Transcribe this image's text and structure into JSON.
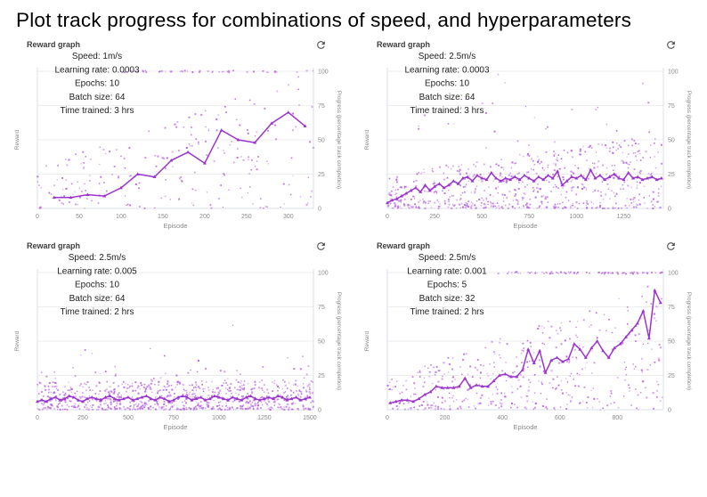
{
  "page": {
    "title": "Plot track progress for combinations of speed, and hyperparameters"
  },
  "colors": {
    "scatter": "#b766e2",
    "line": "#9c34ce",
    "grid": "#ededed",
    "spine": "#d9e1eb",
    "tick_text": "#8a8a8a",
    "axis_label_text": "#8a8a8a",
    "annotation_text": "#222222",
    "panel_title_text": "#3d3d3d",
    "refresh_icon": "#4f4f4f"
  },
  "chart_data": [
    {
      "type": "scatter",
      "title": "Reward graph",
      "refresh_icon": "refresh-icon",
      "annotation": [
        "Speed: 1m/s",
        "Learning rate: 0.0003",
        "Epochs: 10",
        "Batch size: 64",
        "Time trained: 3 hrs"
      ],
      "xlabel": "Episode",
      "ylabel_left": "Reward",
      "ylabel_right": "Progress (percentage track completion)",
      "x_ticks": [
        0,
        50,
        100,
        150,
        200,
        250,
        300
      ],
      "y_ticks_right": [
        0,
        25,
        50,
        75,
        100
      ],
      "x_max": 330,
      "ylim": [
        0,
        100
      ],
      "grid": true,
      "line": {
        "name": "average-progress",
        "points": [
          [
            20,
            8
          ],
          [
            40,
            8
          ],
          [
            60,
            10
          ],
          [
            80,
            9
          ],
          [
            100,
            15
          ],
          [
            120,
            25
          ],
          [
            140,
            23
          ],
          [
            160,
            35
          ],
          [
            180,
            41
          ],
          [
            200,
            33
          ],
          [
            220,
            57
          ],
          [
            240,
            50
          ],
          [
            260,
            48
          ],
          [
            280,
            62
          ],
          [
            300,
            70
          ],
          [
            320,
            60
          ]
        ]
      },
      "scatter": {
        "name": "episode-progress",
        "seed": 7,
        "count": 220,
        "y_max_start": 30,
        "y_max_end": 100,
        "bias": 1.3,
        "top_row": {
          "start_frac": 0.3,
          "count": 45
        },
        "extra": []
      }
    },
    {
      "type": "scatter",
      "title": "Reward graph",
      "refresh_icon": "refresh-icon",
      "annotation": [
        "Speed: 2.5m/s",
        "Learning rate: 0.0003",
        "Epochs: 10",
        "Batch size: 64",
        "Time trained: 3 hrs"
      ],
      "xlabel": "Episode",
      "ylabel_left": "Reward",
      "ylabel_right": "Progress (percentage track completion)",
      "x_ticks": [
        0,
        250,
        500,
        750,
        1000,
        1250
      ],
      "y_ticks_right": [
        0,
        25,
        50,
        75,
        100
      ],
      "x_max": 1460,
      "ylim": [
        0,
        100
      ],
      "grid": true,
      "line": {
        "name": "average-progress",
        "x_start": 0,
        "x_step": 25,
        "y_values": [
          4,
          6,
          7,
          9,
          11,
          13,
          15,
          12,
          17,
          13,
          16,
          18,
          15,
          17,
          20,
          18,
          22,
          23,
          20,
          24,
          22,
          21,
          26,
          22,
          20,
          22,
          21,
          23,
          21,
          24,
          22,
          20,
          23,
          21,
          24,
          22,
          27,
          17,
          20,
          23,
          22,
          24,
          21,
          28,
          22,
          24,
          21,
          23,
          25,
          22,
          21,
          26,
          22,
          23,
          21,
          22,
          23,
          21,
          22
        ]
      },
      "scatter": {
        "name": "episode-progress",
        "seed": 13,
        "count": 650,
        "y_max_start": 25,
        "y_max_end": 55,
        "bias": 1.5,
        "top_row": null,
        "extra": [
          {
            "count": 30,
            "ymin": 40,
            "ymax": 80,
            "start_frac": 0.05
          },
          {
            "count": 3,
            "ymin": 90,
            "ymax": 100,
            "start_frac": 0.3
          }
        ]
      }
    },
    {
      "type": "scatter",
      "title": "Reward graph",
      "refresh_icon": "refresh-icon",
      "annotation": [
        "Speed: 2.5m/s",
        "Learning rate: 0.005",
        "Epochs: 10",
        "Batch size: 64",
        "Time trained: 2 hrs"
      ],
      "xlabel": "Episode",
      "ylabel_left": "Reward",
      "ylabel_right": "Progress (percentage track completion)",
      "x_ticks": [
        0,
        250,
        500,
        750,
        1000,
        1250,
        1500
      ],
      "y_ticks_right": [
        0,
        25,
        50,
        75,
        100
      ],
      "x_max": 1520,
      "ylim": [
        0,
        100
      ],
      "grid": true,
      "line": {
        "name": "average-progress",
        "x_start": 0,
        "x_step": 25,
        "y_values": [
          6,
          7,
          6,
          8,
          9,
          7,
          8,
          10,
          9,
          7,
          6,
          8,
          9,
          8,
          7,
          9,
          10,
          8,
          7,
          8,
          9,
          7,
          8,
          9,
          10,
          8,
          7,
          9,
          8,
          6,
          7,
          9,
          10,
          9,
          7,
          8,
          9,
          7,
          8,
          10,
          9,
          8,
          7,
          9,
          8,
          7,
          9,
          10,
          8,
          7,
          8,
          9,
          8,
          10,
          9,
          7,
          8,
          9,
          7,
          8,
          9
        ]
      },
      "scatter": {
        "name": "episode-progress",
        "seed": 21,
        "count": 800,
        "y_max_start": 20,
        "y_max_end": 22,
        "bias": 1.6,
        "top_row": null,
        "extra": [
          {
            "count": 45,
            "ymin": 18,
            "ymax": 32,
            "start_frac": 0
          },
          {
            "count": 10,
            "ymin": 30,
            "ymax": 45,
            "start_frac": 0.05
          },
          {
            "count": 1,
            "ymin": 60,
            "ymax": 62,
            "start_frac": 0.3
          }
        ]
      }
    },
    {
      "type": "scatter",
      "title": "Reward graph",
      "refresh_icon": "refresh-icon",
      "annotation": [
        "Speed: 2.5m/s",
        "Learning rate: 0.001",
        "Epochs: 5",
        "Batch size: 32",
        "Time trained: 2 hrs"
      ],
      "xlabel": "Episode",
      "ylabel_left": "Reward",
      "ylabel_right": "Progress (percentage track completion)",
      "x_ticks": [
        0,
        200,
        400,
        600,
        800
      ],
      "y_ticks_right": [
        0,
        25,
        50,
        75,
        100
      ],
      "x_max": 960,
      "ylim": [
        0,
        100
      ],
      "grid": true,
      "line": {
        "name": "average-progress",
        "points": [
          [
            10,
            5
          ],
          [
            30,
            6
          ],
          [
            50,
            7
          ],
          [
            70,
            7
          ],
          [
            90,
            6
          ],
          [
            110,
            8
          ],
          [
            130,
            11
          ],
          [
            150,
            13
          ],
          [
            170,
            17
          ],
          [
            190,
            16
          ],
          [
            210,
            16
          ],
          [
            230,
            16
          ],
          [
            250,
            17
          ],
          [
            270,
            23
          ],
          [
            290,
            16
          ],
          [
            310,
            18
          ],
          [
            330,
            17
          ],
          [
            350,
            17
          ],
          [
            370,
            21
          ],
          [
            390,
            25
          ],
          [
            410,
            26
          ],
          [
            430,
            24
          ],
          [
            450,
            24
          ],
          [
            470,
            29
          ],
          [
            490,
            44
          ],
          [
            510,
            34
          ],
          [
            530,
            43
          ],
          [
            550,
            27
          ],
          [
            570,
            36
          ],
          [
            590,
            38
          ],
          [
            610,
            35
          ],
          [
            630,
            37
          ],
          [
            650,
            48
          ],
          [
            670,
            44
          ],
          [
            690,
            38
          ],
          [
            710,
            45
          ],
          [
            730,
            50
          ],
          [
            750,
            43
          ],
          [
            770,
            38
          ],
          [
            790,
            45
          ],
          [
            810,
            48
          ],
          [
            830,
            53
          ],
          [
            850,
            58
          ],
          [
            870,
            63
          ],
          [
            890,
            72
          ],
          [
            910,
            52
          ],
          [
            930,
            87
          ],
          [
            950,
            78
          ]
        ]
      },
      "scatter": {
        "name": "episode-progress",
        "seed": 42,
        "count": 420,
        "y_max_start": 22,
        "y_max_end": 95,
        "bias": 1.35,
        "top_row": {
          "start_frac": 0.4,
          "count": 80
        },
        "extra": []
      }
    }
  ]
}
